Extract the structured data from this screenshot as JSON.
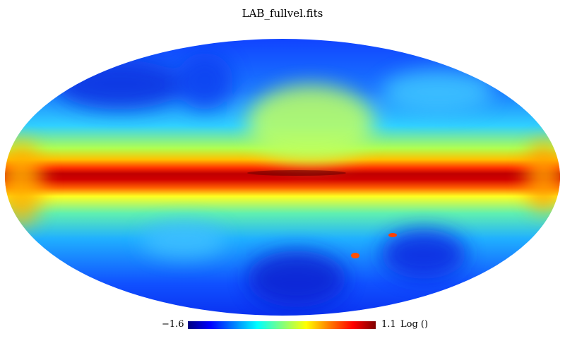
{
  "chart_data": {
    "type": "heatmap",
    "projection": "mollweide",
    "title": "LAB_fullvel.fits",
    "colorbar": {
      "min": -1.6,
      "max": 1.1,
      "min_label": "−1.6",
      "max_label": "1.1",
      "unit_label": "Log ()",
      "colormap": [
        "#00007f",
        "#0000ff",
        "#00ffff",
        "#7fff7f",
        "#ffff00",
        "#ff7f00",
        "#ff0000",
        "#7f0000"
      ]
    }
  }
}
